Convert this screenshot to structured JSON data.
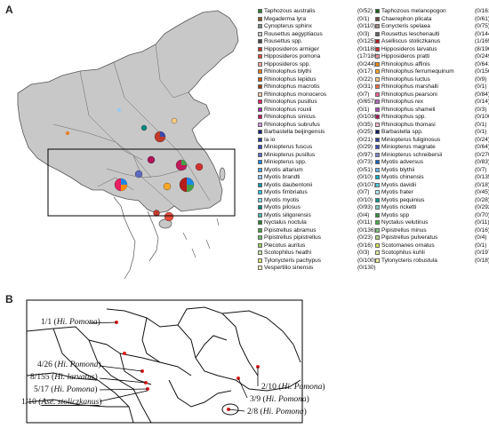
{
  "panel_a": {
    "letter": "A",
    "legend": {
      "left": [
        {
          "name": "Taphozous australis",
          "count": "(0/52)",
          "color": "#2e7d2e"
        },
        {
          "name": "Megaderma lyra",
          "count": "(0/1)",
          "color": "#8b5a2b"
        },
        {
          "name": "Cynopterus sphinx",
          "count": "(0/110)",
          "color": "#7a8a8a"
        },
        {
          "name": "Rousettus aegyptiacus",
          "count": "(0/3)",
          "color": "#c8c8c8"
        },
        {
          "name": "Rousettus spp.",
          "count": "(0/125)",
          "color": "#4b4b4b"
        },
        {
          "name": "Hipposideros armiger",
          "count": "(0/1188)",
          "color": "#c0392b"
        },
        {
          "name": "Hipposideros pomona",
          "count": "(17/186)",
          "color": "#e74c3c"
        },
        {
          "name": "Hipposideros spp.",
          "count": "(0/244)",
          "color": "#f4a6a0"
        },
        {
          "name": "Rhinolophus blythi",
          "count": "(0/17)",
          "color": "#e67e22"
        },
        {
          "name": "Rhinolophus lepidus",
          "count": "(0/22)",
          "color": "#d35400"
        },
        {
          "name": "Rhinolophus macrotis",
          "count": "(0/31)",
          "color": "#a04000"
        },
        {
          "name": "Rhinolophus monoceros",
          "count": "(0/7)",
          "color": "#f5cba7"
        },
        {
          "name": "Rhinolophus pusillus",
          "count": "(0/657)",
          "color": "#e91e63"
        },
        {
          "name": "Rhinolophus rouxii",
          "count": "(0/1)",
          "color": "#9c27b0"
        },
        {
          "name": "Rhinolophus sinicus",
          "count": "(0/1036)",
          "color": "#c2185b"
        },
        {
          "name": "Rhinolophus subrufus",
          "count": "(0/35)",
          "color": "#ce93d8"
        },
        {
          "name": "Barbastella beijingensis",
          "count": "(0/25)",
          "color": "#1a237e"
        },
        {
          "name": "Ia io",
          "count": "(0/21)",
          "color": "#283593"
        },
        {
          "name": "Miniopterus fuscus",
          "count": "(0/29)",
          "color": "#3949ab"
        },
        {
          "name": "Miniopterus pusillus",
          "count": "(0/97)",
          "color": "#5c6bc0"
        },
        {
          "name": "Miniopterus spp.",
          "count": "(0/73)",
          "color": "#1e88e5"
        },
        {
          "name": "Myotis altarium",
          "count": "(0/51)",
          "color": "#42a5f5"
        },
        {
          "name": "Myotis brandti",
          "count": "(0/10)",
          "color": "#90caf9"
        },
        {
          "name": "Myotis daubentonii",
          "count": "(0/107)",
          "color": "#0097a7"
        },
        {
          "name": "Myotis fimbriatus",
          "count": "(0/7)",
          "color": "#26c6da"
        },
        {
          "name": "Myotis myotis",
          "count": "(0/10)",
          "color": "#80deea"
        },
        {
          "name": "Myotis pilosus",
          "count": "(0/93)",
          "color": "#00897b"
        },
        {
          "name": "Myotis siligorensis",
          "count": "(0/4)",
          "color": "#4db6ac"
        },
        {
          "name": "Nyctalus noctula",
          "count": "(0/11)",
          "color": "#2e7d32"
        },
        {
          "name": "Pipistrellus abramus",
          "count": "(0/136)",
          "color": "#43a047"
        },
        {
          "name": "Pipistrellus pipistrellus",
          "count": "(0/23)",
          "color": "#66bb6a"
        },
        {
          "name": "Plecotus auritus",
          "count": "(0/16)",
          "color": "#9ccc65"
        },
        {
          "name": "Scotophilus heathi",
          "count": "(0/3)",
          "color": "#c5e1a5"
        },
        {
          "name": "Tylonycteris pachypus",
          "count": "(0/100)",
          "color": "#dce775"
        },
        {
          "name": "Vespertilio sinensis",
          "count": "(0/130)",
          "color": "#fff9c4"
        }
      ],
      "right": [
        {
          "name": "Taphozous melanopogon",
          "count": "(0/161)",
          "color": "#1b5e20"
        },
        {
          "name": "Chaerephon plicata",
          "count": "(0/61)",
          "color": "#6d4c41"
        },
        {
          "name": "Eonycteris spelaea",
          "count": "(0/75)",
          "color": "#a1887f"
        },
        {
          "name": "Rousettus leschenaulti",
          "count": "(0/144)",
          "color": "#616161"
        },
        {
          "name": "Aselliscus stoliczkanus",
          "count": "(1/165)",
          "color": "#b71c1c"
        },
        {
          "name": "Hipposideros larvatus",
          "count": "(8/196)",
          "color": "#d32f2f"
        },
        {
          "name": "Hipposideros pratti",
          "count": "(0/249)",
          "color": "#ef9a9a"
        },
        {
          "name": "Rhinolophus affinis",
          "count": "(0/641)",
          "color": "#fb8c00"
        },
        {
          "name": "Rhinolophus ferrumequinum",
          "count": "(0/156)",
          "color": "#ffa726"
        },
        {
          "name": "Rhinolophus luctus",
          "count": "(0/9)",
          "color": "#ffcc80"
        },
        {
          "name": "Rhinolophus marshalli",
          "count": "(0/1)",
          "color": "#ff7043"
        },
        {
          "name": "Rhinolophus pearsoni",
          "count": "(0/84)",
          "color": "#f06292"
        },
        {
          "name": "Rhinolophus rex",
          "count": "(0/14)",
          "color": "#ba68c8"
        },
        {
          "name": "Rhinolophus shameli",
          "count": "(0/3)",
          "color": "#ab47bc"
        },
        {
          "name": "Rhinolophus spp.",
          "count": "(0/100)",
          "color": "#ad1457"
        },
        {
          "name": "Rhinolophus thomasi",
          "count": "(0/1)",
          "color": "#f8bbd0"
        },
        {
          "name": "Barbastella spp.",
          "count": "(0/1)",
          "color": "#0d1b5e"
        },
        {
          "name": "Miniopterus fuliginosus",
          "count": "(0/24)",
          "color": "#303f9f"
        },
        {
          "name": "Miniopterus magnate",
          "count": "(0/64)",
          "color": "#3f51b5"
        },
        {
          "name": "Miniopterus schreibersii",
          "count": "(0/270)",
          "color": "#7986cb"
        },
        {
          "name": "Myotis adversus",
          "count": "(0/83)",
          "color": "#1565c0"
        },
        {
          "name": "Myotis blythii",
          "count": "(0/7)",
          "color": "#64b5f6"
        },
        {
          "name": "Myotis chinensis",
          "count": "(0/135)",
          "color": "#00acc1"
        },
        {
          "name": "Myotis davidii",
          "count": "(0/18)",
          "color": "#4dd0e1"
        },
        {
          "name": "Myotis frater",
          "count": "(0/45)",
          "color": "#b2ebf2"
        },
        {
          "name": "Myotis pequinius",
          "count": "(0/28)",
          "color": "#009688"
        },
        {
          "name": "Myotis ricketti",
          "count": "(0/292)",
          "color": "#80cbc4"
        },
        {
          "name": "Myotis spp",
          "count": "(0/70)",
          "color": "#388e3c"
        },
        {
          "name": "Nyctalus velutinus",
          "count": "(0/11)",
          "color": "#4caf50"
        },
        {
          "name": "Pipistrellus minus",
          "count": "(0/16)",
          "color": "#81c784"
        },
        {
          "name": "Pipistrellus pulveratus",
          "count": "(0/4)",
          "color": "#aed581"
        },
        {
          "name": "Scotomanes ornatus",
          "count": "(0/1)",
          "color": "#d4e157"
        },
        {
          "name": "Scotophilus kuhli",
          "count": "(0/197)",
          "color": "#e6ee9c"
        },
        {
          "name": "Tylonycteris robustula",
          "count": "(0/18)",
          "color": "#fff59d"
        }
      ]
    }
  },
  "panel_b": {
    "letter": "B",
    "annotations": [
      {
        "count": "1/1",
        "species": "Hi. Pomona"
      },
      {
        "count": "4/26",
        "species": "Hi. Pomona"
      },
      {
        "count": "8/155",
        "species": "Hi. larvatus"
      },
      {
        "count": "5/17",
        "species": "Hi. Pomona"
      },
      {
        "count": "1/10",
        "species": "Ase. stoliczkanus"
      },
      {
        "count": "2/10",
        "species": "Hi. Pomona"
      },
      {
        "count": "3/9",
        "species": "Hi. Pomona"
      },
      {
        "count": "2/8",
        "species": "Hi. Pomona"
      }
    ]
  },
  "colors": {
    "land": "#c8c8c8",
    "border": "#666666",
    "site_marker": "#e02020"
  }
}
